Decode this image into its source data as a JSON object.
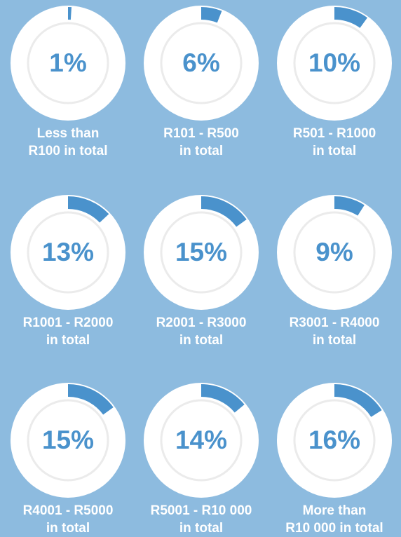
{
  "chart_data": {
    "type": "gauge",
    "categories": [
      [
        "Less than",
        "R100 in total"
      ],
      [
        "R101 - R500",
        "in total"
      ],
      [
        "R501 - R1000",
        "in total"
      ],
      [
        "R1001 - R2000",
        "in total"
      ],
      [
        "R2001 - R3000",
        "in total"
      ],
      [
        "R3001 - R4000",
        "in total"
      ],
      [
        "R4001 - R5000",
        "in total"
      ],
      [
        "R5001 - R10 000",
        "in total"
      ],
      [
        "More than",
        "R10 000 in total"
      ]
    ],
    "values": [
      1,
      6,
      10,
      13,
      15,
      9,
      15,
      14,
      16
    ],
    "value_labels": [
      "1%",
      "6%",
      "10%",
      "13%",
      "15%",
      "9%",
      "15%",
      "14%",
      "16%"
    ],
    "ylim": [
      0,
      100
    ],
    "color": "#4a92cc"
  }
}
